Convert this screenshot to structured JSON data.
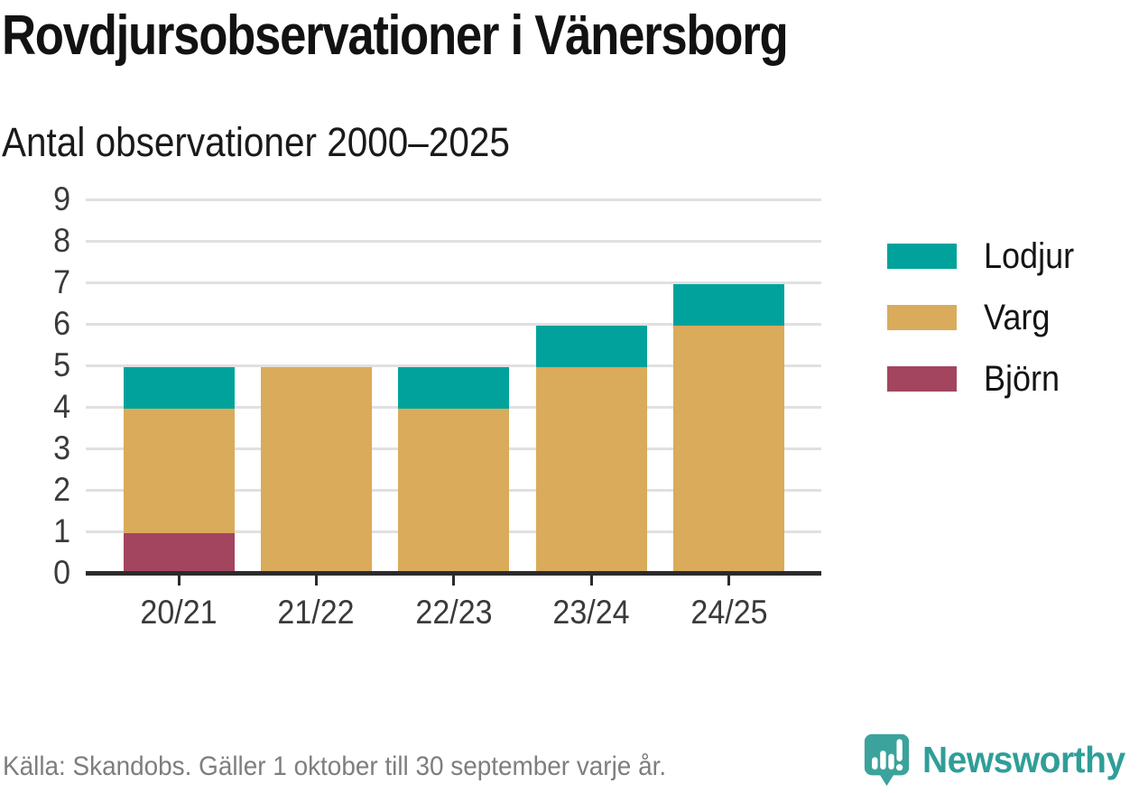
{
  "title": "Rovdjursobservationer i Vänersborg",
  "subtitle": "Antal observationer 2000–2025",
  "footer": {
    "source": "Källa: Skandobs. Gäller 1 oktober till 30 september varje år."
  },
  "logo": {
    "text": "Newsworthy",
    "icon": "newsworthy-pin-chart-icon",
    "color": "#2f9e98"
  },
  "colors": {
    "lodjur": "#00a29b",
    "varg": "#d9ab5b",
    "bjorn": "#a3455f",
    "axis": "#2b2b2b",
    "grid": "#e0e0e0",
    "tick_text": "#3a3a3a",
    "source_text": "#7e7e7e"
  },
  "chart_data": {
    "type": "bar",
    "stacked": true,
    "title": "Rovdjursobservationer i Vänersborg",
    "subtitle": "Antal observationer 2000–2025",
    "categories": [
      "20/21",
      "21/22",
      "22/23",
      "23/24",
      "24/25"
    ],
    "series": [
      {
        "name": "Björn",
        "color_key": "bjorn",
        "values": [
          1,
          0,
          0,
          0,
          0
        ]
      },
      {
        "name": "Varg",
        "color_key": "varg",
        "values": [
          3,
          5,
          4,
          5,
          6
        ]
      },
      {
        "name": "Lodjur",
        "color_key": "lodjur",
        "values": [
          1,
          0,
          1,
          1,
          1
        ]
      }
    ],
    "totals": [
      5,
      5,
      5,
      6,
      7
    ],
    "ylim": [
      0,
      9
    ],
    "y_ticks": [
      0,
      1,
      2,
      3,
      4,
      5,
      6,
      7,
      8,
      9
    ],
    "grid": true,
    "legend_position": "right",
    "legend_items": [
      {
        "label": "Lodjur",
        "color_key": "lodjur"
      },
      {
        "label": "Varg",
        "color_key": "varg"
      },
      {
        "label": "Björn",
        "color_key": "bjorn"
      }
    ]
  }
}
